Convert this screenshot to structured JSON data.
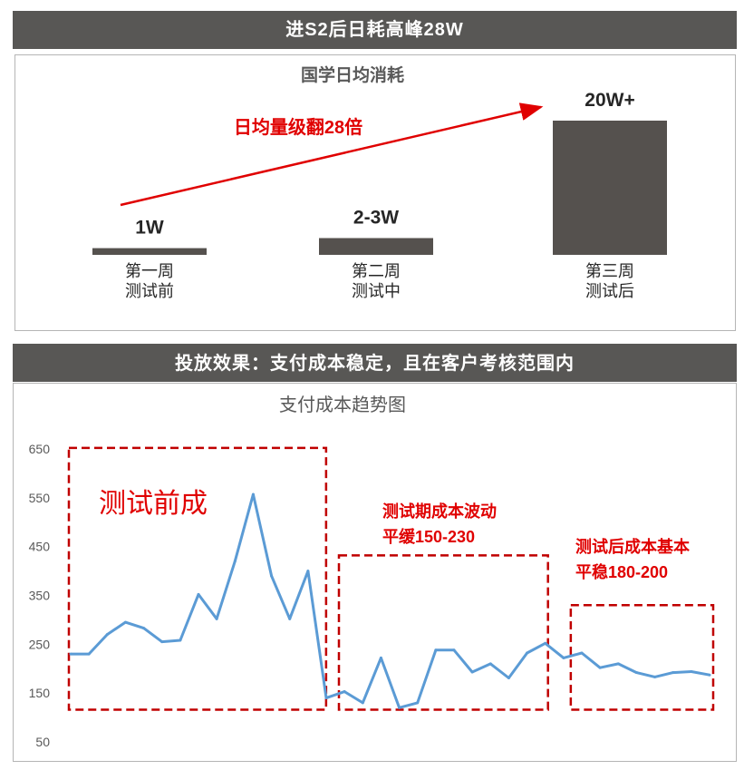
{
  "banner_top": "进S2后日耗高峰28W",
  "banner_bottom": "投放效果：支付成本稳定，且在客户考核范围内",
  "colors": {
    "banner": "#585755",
    "bar": "#55514e",
    "accent": "#e00000",
    "line": "#5b9bd5",
    "box": "#c00000"
  },
  "chart_data": [
    {
      "type": "bar",
      "title": "国学日均消耗",
      "categories": [
        "第一周\n测试前",
        "第二周\n测试中",
        "第三周\n测试后"
      ],
      "category_lines": [
        [
          "第一周",
          "测试前"
        ],
        [
          "第二周",
          "测试中"
        ],
        [
          "第三周",
          "测试后"
        ]
      ],
      "values_wan": [
        1,
        2.5,
        20
      ],
      "data_labels": [
        "1W",
        "2-3W",
        "20W+"
      ],
      "annotation": "日均量级翻28倍",
      "legend": "none",
      "grid": false
    },
    {
      "type": "line",
      "title": "支付成本趋势图",
      "y_ticks": [
        650,
        550,
        450,
        350,
        250,
        150,
        50
      ],
      "ylim": [
        50,
        650
      ],
      "grid": false,
      "legend": "none",
      "values": [
        230,
        230,
        270,
        295,
        283,
        255,
        258,
        352,
        302,
        420,
        557,
        390,
        302,
        400,
        140,
        153,
        130,
        222,
        120,
        130,
        238,
        238,
        193,
        210,
        181,
        232,
        252,
        222,
        232,
        202,
        210,
        192,
        183,
        192,
        194,
        187
      ],
      "regions": [
        {
          "label_lines": [
            "测试前成"
          ],
          "from": 0,
          "to": 13
        },
        {
          "label_lines": [
            "测试期成本波动",
            "平缓150-230"
          ],
          "from": 14,
          "to": 26
        },
        {
          "label_lines": [
            "测试后成本基本",
            "平稳180-200"
          ],
          "from": 27,
          "to": 35
        }
      ]
    }
  ]
}
